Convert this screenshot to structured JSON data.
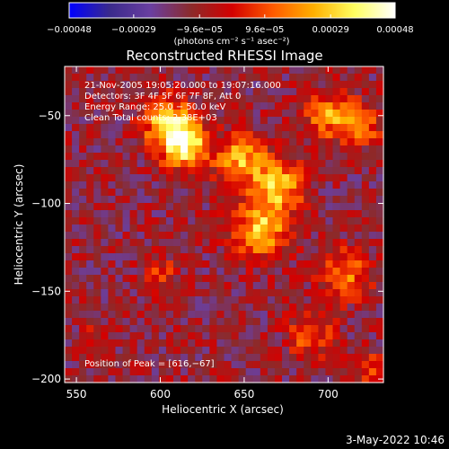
{
  "chart_data": {
    "type": "heatmap",
    "title": "Reconstructed RHESSI Image",
    "xlabel": "Heliocentric X (arcsec)",
    "ylabel": "Heliocentric Y (arcsec)",
    "xlim": [
      543,
      733
    ],
    "ylim": [
      -202,
      -22
    ],
    "x_ticks": [
      550,
      600,
      650,
      700
    ],
    "y_ticks": [
      -50,
      -100,
      -150,
      -200
    ],
    "x_tick_labels": [
      "550",
      "600",
      "650",
      "700"
    ],
    "y_tick_labels": [
      "−50",
      "−100",
      "−150",
      "−200"
    ],
    "colorbar": {
      "min": -0.00048,
      "max": 0.00048,
      "ticks": [
        -0.00048,
        -0.00029,
        -9.6e-05,
        9.6e-05,
        0.00029,
        0.00048
      ],
      "tick_labels": [
        "−0.00048",
        "−0.00029",
        "−9.6e−05",
        "9.6e−05",
        "0.00029",
        "0.00048"
      ],
      "units": "(photons cm⁻² s⁻¹ asec⁻²)",
      "colors": [
        "#0000ff",
        "#3a2a8c",
        "#6a3fa0",
        "#8c2a2a",
        "#d40000",
        "#ff5a00",
        "#ffb000",
        "#ffff60",
        "#ffffff"
      ]
    },
    "annotations": [
      "21‑Nov‑2005 19:05:20.000 to 19:07:16.000",
      "Detectors: 3F 4F 5F 6F 7F 8F, Att 0",
      "Energy Range: 25.0 − 50.0 keV",
      "Clean    Total counts: 2.38E+03"
    ],
    "peak_label": "Position of Peak = [616,−67]",
    "peak": [
      616,
      -67
    ],
    "sources": [
      {
        "x": 605,
        "y": -55,
        "sigma": 10,
        "amp": 0.00044
      },
      {
        "x": 615,
        "y": -67,
        "sigma": 9,
        "amp": 0.00048
      },
      {
        "x": 648,
        "y": -75,
        "sigma": 10,
        "amp": 0.00036
      },
      {
        "x": 670,
        "y": -90,
        "sigma": 10,
        "amp": 0.0004
      },
      {
        "x": 660,
        "y": -115,
        "sigma": 11,
        "amp": 0.0004
      },
      {
        "x": 700,
        "y": -50,
        "sigma": 9,
        "amp": 0.00032
      },
      {
        "x": 720,
        "y": -55,
        "sigma": 8,
        "amp": 0.0003
      },
      {
        "x": 710,
        "y": -140,
        "sigma": 10,
        "amp": 0.00028
      },
      {
        "x": 600,
        "y": -140,
        "sigma": 7,
        "amp": 0.00018
      },
      {
        "x": 690,
        "y": -175,
        "sigma": 9,
        "amp": 0.00024
      },
      {
        "x": 560,
        "y": -180,
        "sigma": 6,
        "amp": 0.00016
      },
      {
        "x": 725,
        "y": -195,
        "sigma": 7,
        "amp": 0.0002
      }
    ],
    "background": -0.00012,
    "grid": false
  },
  "footer": {
    "date": "3‑May‑2022 10:46"
  }
}
